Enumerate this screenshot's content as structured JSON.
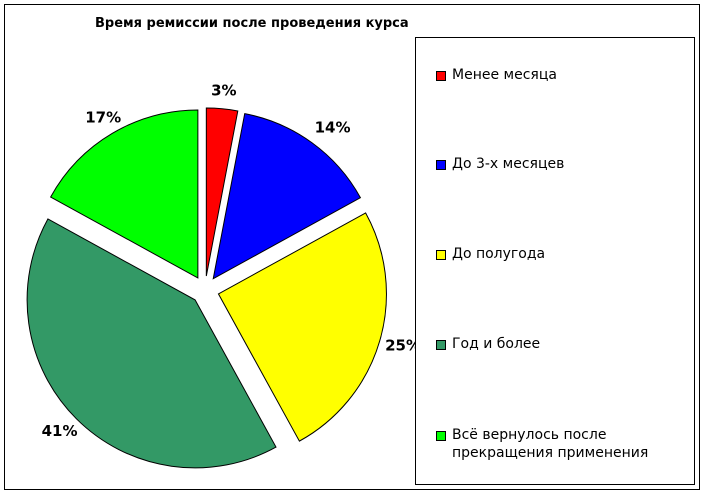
{
  "chart_data": {
    "type": "pie",
    "title": "Время ремиссии после проведения курса",
    "categories": [
      "Менее месяца",
      "До 3-х месяцев",
      "До полугода",
      "Год и более",
      "Всё вернулось после прекращения применения"
    ],
    "values": [
      3,
      14,
      25,
      41,
      17
    ],
    "labels": [
      "3%",
      "14%",
      "25%",
      "41%",
      "17%"
    ],
    "colors": [
      "#ff0000",
      "#0000ff",
      "#ffff00",
      "#339966",
      "#00ff00"
    ],
    "exploded": true,
    "legend_position": "right"
  }
}
